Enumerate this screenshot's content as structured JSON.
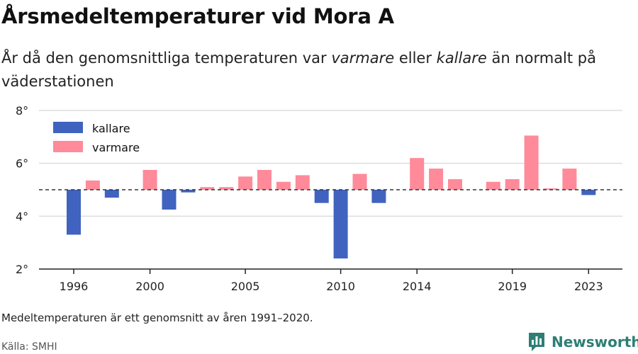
{
  "header": {
    "title": "Årsmedeltemperaturer vid Mora A",
    "subtitle_prefix": "År då den genomsnittliga temperaturen var ",
    "subtitle_warm": "varmare",
    "subtitle_mid": " eller ",
    "subtitle_cold": "kallare",
    "subtitle_suffix": " än normalt på väderstationen"
  },
  "footer": {
    "note": "Medeltemperaturen är ett genomsnitt av åren 1991–2020.",
    "source": "Källa: SMHI",
    "brand": "Newsworthy"
  },
  "colors": {
    "warmer": "#ff8a9a",
    "colder": "#3f63bf",
    "baseline": "#333333",
    "grid": "#dddddd",
    "brand": "#2d7f74"
  },
  "chart_data": {
    "type": "bar",
    "title": "Årsmedeltemperaturer vid Mora A",
    "baseline": 5.0,
    "ylim": [
      2,
      8
    ],
    "yticks": [
      2,
      4,
      6,
      8
    ],
    "ytick_labels": [
      "2°",
      "4°",
      "6°",
      "8°"
    ],
    "xticks": [
      1996,
      2000,
      2005,
      2010,
      2014,
      2019,
      2023
    ],
    "legend": {
      "colder_label": "kallare",
      "warmer_label": "varmare",
      "position": "top-left"
    },
    "grid": true,
    "years": [
      1996,
      1997,
      1998,
      1999,
      2000,
      2001,
      2002,
      2003,
      2004,
      2005,
      2006,
      2007,
      2008,
      2009,
      2010,
      2011,
      2012,
      2013,
      2014,
      2015,
      2016,
      2017,
      2018,
      2019,
      2020,
      2021,
      2022,
      2023
    ],
    "values": [
      3.3,
      5.35,
      4.7,
      null,
      5.75,
      4.25,
      4.9,
      5.1,
      5.1,
      5.5,
      5.75,
      5.3,
      5.55,
      4.5,
      2.4,
      5.6,
      4.5,
      null,
      6.2,
      5.8,
      5.4,
      null,
      5.3,
      5.4,
      7.05,
      5.05,
      5.8,
      4.8
    ]
  }
}
